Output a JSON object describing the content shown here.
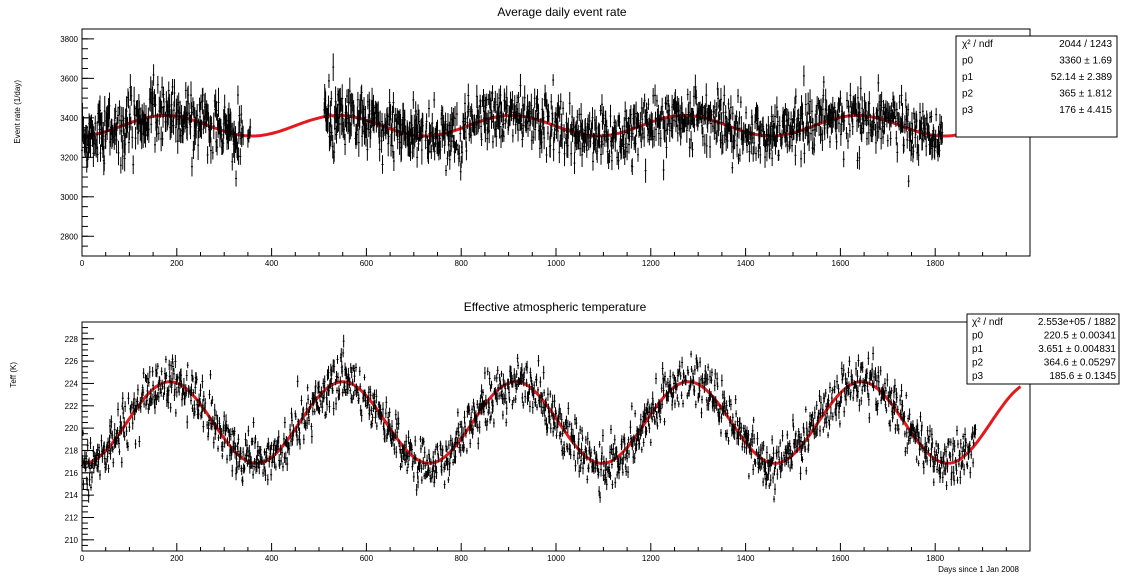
{
  "colors": {
    "fit": "#e31a1c",
    "data": "#000000"
  },
  "chart_data": [
    {
      "type": "scatter",
      "title": "Average daily event rate",
      "ylabel": "Event rate (1/day)",
      "xlabel": "",
      "xlim": [
        0,
        2000
      ],
      "ylim": [
        2700,
        3850
      ],
      "x_ticks": [
        0,
        200,
        400,
        600,
        800,
        1000,
        1200,
        1400,
        1600,
        1800
      ],
      "y_ticks": [
        2800,
        3000,
        3200,
        3400,
        3600,
        3800
      ],
      "grid": false,
      "fit": {
        "function": "p0 + p1*cos(2*pi*(x - p3)/p2)",
        "x_range": [
          0,
          1980
        ]
      },
      "stats_box": {
        "placement": "top-right",
        "rows": [
          {
            "name": "χ² / ndf",
            "value": "2044 / 1243"
          },
          {
            "name": "p0",
            "value": "3360 ± 1.69"
          },
          {
            "name": "p1",
            "value": "52.14 ± 2.389"
          },
          {
            "name": "p2",
            "value": "365 ± 1.812"
          },
          {
            "name": "p3",
            "value": "176 ± 4.415"
          }
        ]
      },
      "params": {
        "p0": 3360,
        "p1": 52.14,
        "p2": 365,
        "p3": 176
      },
      "data_segments": [
        {
          "x": [
            0,
            340
          ],
          "daily_scatter": 70,
          "error": 55
        },
        {
          "x": [
            350,
            355
          ],
          "daily_scatter": 40,
          "error": 40
        },
        {
          "x": [
            510,
            720
          ],
          "daily_scatter": 70,
          "error": 55
        },
        {
          "x": [
            725,
            1815
          ],
          "daily_scatter": 65,
          "error": 45
        }
      ]
    },
    {
      "type": "scatter",
      "title": "Effective atmospheric temperature",
      "ylabel": "Teff (K)",
      "xlabel": "Days since 1 Jan 2008",
      "xlim": [
        0,
        2000
      ],
      "ylim": [
        209,
        229.5
      ],
      "x_ticks": [
        0,
        200,
        400,
        600,
        800,
        1000,
        1200,
        1400,
        1600,
        1800
      ],
      "y_ticks": [
        210,
        212,
        214,
        216,
        218,
        220,
        222,
        224,
        226,
        228
      ],
      "grid": false,
      "fit": {
        "function": "p0 + p1*cos(2*pi*(x - p3)/p2)",
        "x_range": [
          0,
          1980
        ]
      },
      "stats_box": {
        "placement": "top-right",
        "rows": [
          {
            "name": "χ² / ndf",
            "value": "2.553e+05 / 1882"
          },
          {
            "name": "p0",
            "value": "220.5 ± 0.00341"
          },
          {
            "name": "p1",
            "value": "3.651 ± 0.004831"
          },
          {
            "name": "p2",
            "value": "364.6 ± 0.05297"
          },
          {
            "name": "p3",
            "value": "185.6 ± 0.1345"
          }
        ]
      },
      "params": {
        "p0": 220.5,
        "p1": 3.651,
        "p2": 364.6,
        "p3": 185.6
      },
      "data_segments": [
        {
          "x": [
            0,
            1885
          ],
          "daily_scatter": 1.1,
          "error": 0.45
        }
      ]
    }
  ]
}
